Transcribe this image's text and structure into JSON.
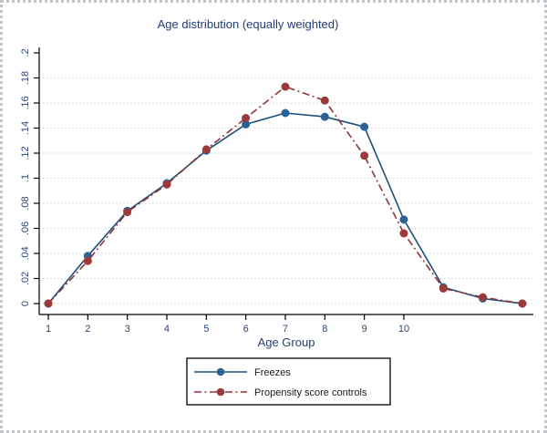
{
  "figure": {
    "title": "Age distribution (equally weighted)",
    "x_axis_label": "Age Group"
  },
  "chart_data": {
    "type": "line",
    "title": "Age distribution (equally weighted)",
    "xlabel": "Age Group",
    "ylabel": "",
    "x": [
      1,
      2,
      3,
      4,
      5,
      6,
      7,
      8,
      9,
      10,
      11,
      12,
      13
    ],
    "x_tick_values": [
      1,
      2,
      3,
      4,
      5,
      6,
      7,
      8,
      9,
      10
    ],
    "x_tick_labels": [
      "1",
      "2",
      "3",
      "4",
      "5",
      "6",
      "7",
      "8",
      "9",
      "10"
    ],
    "y_tick_values": [
      0,
      0.02,
      0.04,
      0.06,
      0.08,
      0.1,
      0.12,
      0.14,
      0.16,
      0.18,
      0.2
    ],
    "y_tick_labels": [
      "0",
      ".02",
      ".04",
      ".06",
      ".08",
      ".1",
      ".12",
      ".14",
      ".16",
      ".18",
      ".2"
    ],
    "grid_values": [
      0,
      0.02,
      0.04,
      0.06,
      0.08,
      0.1,
      0.12,
      0.14,
      0.16,
      0.18
    ],
    "ylim": [
      0,
      0.2
    ],
    "xlim": [
      1,
      13.3
    ],
    "grid": "horizontal dotted gridlines at labeled y ticks",
    "legend_position": "bottom-center",
    "series": [
      {
        "name": "Freezes",
        "line_style": "solid",
        "color": "#1c4f7c",
        "marker_color": "#2b6296",
        "values": [
          0.0,
          0.038,
          0.074,
          0.096,
          0.122,
          0.143,
          0.152,
          0.149,
          0.141,
          0.067,
          0.013,
          0.004,
          0.0
        ]
      },
      {
        "name": "Propensity score controls",
        "line_style": "dash-dot",
        "color": "#90353b",
        "marker_color": "#9c3a3a",
        "values": [
          0.0,
          0.034,
          0.073,
          0.095,
          0.123,
          0.148,
          0.173,
          0.162,
          0.118,
          0.056,
          0.012,
          0.005,
          0.0
        ]
      }
    ]
  },
  "colors": {
    "title_text": "#203d77",
    "axis_label_text": "#27406f",
    "tick_text": "#2c4770",
    "axis_line": "#000000",
    "gridline": "#b9dce2",
    "legend_border": "#000000",
    "legend_text": "#1a1a1a",
    "background": "#ffffff",
    "outer_border": "#c0c6c9"
  }
}
